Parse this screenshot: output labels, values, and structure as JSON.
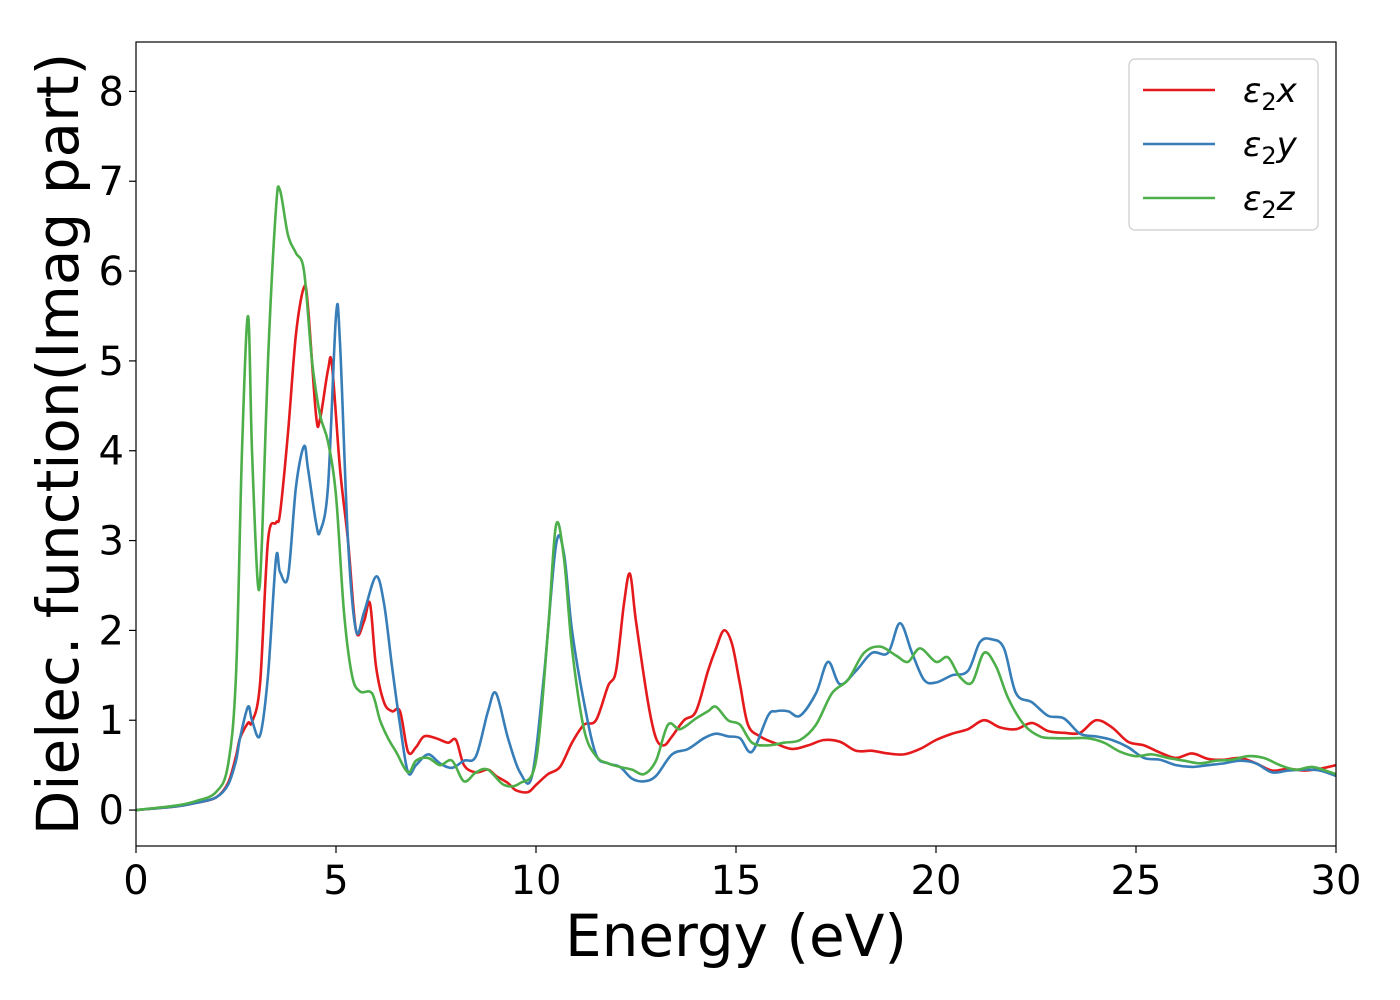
{
  "chart_data": {
    "type": "line",
    "xlabel": "Energy (eV)",
    "ylabel": "Dielec. function(Imag part)",
    "xlim": [
      0,
      30
    ],
    "ylim": [
      -0.4,
      8.55
    ],
    "xticks": [
      0,
      5,
      10,
      15,
      20,
      25,
      30
    ],
    "yticks": [
      0,
      1,
      2,
      3,
      4,
      5,
      6,
      7,
      8
    ],
    "grid": false,
    "legend_position": "top-right",
    "series": [
      {
        "name": "ε₂x",
        "legend_main": "ε",
        "legend_sub": "2",
        "legend_suffix": "x",
        "color": "#e41a1c",
        "x": [
          0,
          1,
          1.5,
          2,
          2.3,
          2.5,
          2.6,
          2.8,
          2.9,
          3.1,
          3.3,
          3.5,
          3.6,
          3.8,
          4.0,
          4.2,
          4.3,
          4.5,
          4.6,
          4.8,
          4.9,
          5.1,
          5.3,
          5.5,
          5.7,
          5.85,
          6.0,
          6.2,
          6.4,
          6.6,
          6.8,
          7.0,
          7.2,
          7.5,
          7.8,
          8.0,
          8.2,
          8.5,
          8.8,
          9.0,
          9.3,
          9.5,
          9.8,
          10.0,
          10.3,
          10.6,
          10.9,
          11.2,
          11.5,
          11.8,
          12.0,
          12.2,
          12.35,
          12.5,
          12.8,
          13.0,
          13.2,
          13.4,
          13.7,
          14.0,
          14.3,
          14.5,
          14.7,
          14.9,
          15.1,
          15.3,
          15.6,
          16.0,
          16.4,
          16.8,
          17.2,
          17.6,
          18.0,
          18.4,
          18.8,
          19.2,
          19.6,
          20.0,
          20.4,
          20.8,
          21.2,
          21.6,
          22.0,
          22.4,
          22.8,
          23.2,
          23.6,
          24.0,
          24.4,
          24.8,
          25.2,
          25.6,
          26.0,
          26.4,
          26.8,
          27.2,
          27.6,
          28.0,
          28.4,
          28.8,
          29.2,
          29.6,
          30
        ],
        "y": [
          0,
          0.04,
          0.08,
          0.14,
          0.3,
          0.6,
          0.8,
          0.97,
          0.98,
          1.4,
          3.0,
          3.2,
          3.3,
          4.2,
          5.3,
          5.82,
          5.6,
          4.4,
          4.35,
          4.9,
          4.95,
          3.8,
          3.0,
          2.0,
          2.1,
          2.3,
          1.6,
          1.2,
          1.1,
          1.1,
          0.65,
          0.7,
          0.82,
          0.8,
          0.75,
          0.78,
          0.5,
          0.42,
          0.45,
          0.38,
          0.3,
          0.22,
          0.2,
          0.28,
          0.4,
          0.48,
          0.75,
          0.95,
          1.0,
          1.38,
          1.55,
          2.3,
          2.63,
          2.1,
          1.2,
          0.8,
          0.72,
          0.82,
          1.0,
          1.1,
          1.55,
          1.8,
          2.0,
          1.85,
          1.4,
          0.95,
          0.82,
          0.74,
          0.68,
          0.72,
          0.78,
          0.76,
          0.66,
          0.66,
          0.63,
          0.62,
          0.68,
          0.78,
          0.85,
          0.9,
          1.0,
          0.92,
          0.9,
          0.97,
          0.88,
          0.86,
          0.86,
          1.0,
          0.92,
          0.76,
          0.72,
          0.64,
          0.58,
          0.63,
          0.57,
          0.56,
          0.58,
          0.52,
          0.44,
          0.46,
          0.44,
          0.46,
          0.5
        ]
      },
      {
        "name": "ε₂y",
        "legend_main": "ε",
        "legend_sub": "2",
        "legend_suffix": "y",
        "color": "#377eb8",
        "x": [
          0,
          1,
          1.5,
          2,
          2.3,
          2.5,
          2.6,
          2.8,
          2.9,
          3.1,
          3.3,
          3.5,
          3.6,
          3.8,
          4.0,
          4.2,
          4.3,
          4.5,
          4.6,
          4.8,
          5.0,
          5.1,
          5.3,
          5.5,
          5.7,
          6.0,
          6.2,
          6.4,
          6.6,
          6.8,
          7.0,
          7.3,
          7.6,
          7.9,
          8.2,
          8.5,
          8.8,
          9.0,
          9.3,
          9.6,
          9.9,
          10.2,
          10.5,
          10.7,
          10.9,
          11.2,
          11.5,
          11.8,
          12.1,
          12.4,
          12.7,
          13.0,
          13.4,
          13.8,
          14.2,
          14.5,
          14.8,
          15.1,
          15.4,
          15.8,
          16.0,
          16.3,
          16.6,
          17.0,
          17.3,
          17.6,
          18.0,
          18.4,
          18.8,
          19.1,
          19.4,
          19.7,
          20.0,
          20.4,
          20.8,
          21.1,
          21.4,
          21.7,
          22.0,
          22.4,
          22.8,
          23.2,
          23.6,
          24.0,
          24.4,
          24.8,
          25.2,
          25.6,
          26.0,
          26.4,
          26.8,
          27.2,
          27.6,
          28.0,
          28.4,
          28.8,
          29.2,
          29.6,
          30
        ],
        "y": [
          0,
          0.04,
          0.08,
          0.14,
          0.28,
          0.55,
          0.8,
          1.15,
          1.0,
          0.83,
          1.5,
          2.8,
          2.65,
          2.6,
          3.6,
          4.05,
          3.8,
          3.2,
          3.1,
          3.6,
          5.5,
          5.2,
          3.0,
          2.0,
          2.2,
          2.6,
          2.3,
          1.6,
          0.95,
          0.42,
          0.5,
          0.62,
          0.52,
          0.47,
          0.55,
          0.6,
          1.1,
          1.3,
          0.8,
          0.42,
          0.38,
          1.5,
          2.95,
          2.85,
          2.0,
          1.2,
          0.62,
          0.52,
          0.48,
          0.35,
          0.32,
          0.38,
          0.62,
          0.68,
          0.8,
          0.85,
          0.82,
          0.8,
          0.65,
          1.05,
          1.1,
          1.1,
          1.05,
          1.3,
          1.65,
          1.4,
          1.55,
          1.75,
          1.75,
          2.08,
          1.75,
          1.45,
          1.42,
          1.5,
          1.55,
          1.87,
          1.9,
          1.8,
          1.3,
          1.2,
          1.05,
          1.02,
          0.85,
          0.82,
          0.78,
          0.7,
          0.58,
          0.56,
          0.5,
          0.48,
          0.5,
          0.52,
          0.55,
          0.52,
          0.42,
          0.44,
          0.45,
          0.44,
          0.38
        ]
      },
      {
        "name": "ε₂z",
        "legend_main": "ε",
        "legend_sub": "2",
        "legend_suffix": "z",
        "color": "#4daf4a",
        "x": [
          0,
          1,
          1.5,
          2,
          2.3,
          2.5,
          2.65,
          2.8,
          2.9,
          3.05,
          3.15,
          3.3,
          3.5,
          3.6,
          3.8,
          4.0,
          4.2,
          4.4,
          4.6,
          4.8,
          5.0,
          5.2,
          5.4,
          5.6,
          5.9,
          6.1,
          6.3,
          6.5,
          6.8,
          7.0,
          7.3,
          7.6,
          7.9,
          8.2,
          8.5,
          8.8,
          9.2,
          9.6,
          10.0,
          10.3,
          10.5,
          10.7,
          10.9,
          11.2,
          11.5,
          11.8,
          12.1,
          12.4,
          12.7,
          13.0,
          13.3,
          13.6,
          14.0,
          14.3,
          14.5,
          14.8,
          15.1,
          15.4,
          15.8,
          16.2,
          16.6,
          17.0,
          17.4,
          17.8,
          18.2,
          18.6,
          19.0,
          19.3,
          19.6,
          20.0,
          20.3,
          20.6,
          20.9,
          21.2,
          21.5,
          21.8,
          22.2,
          22.6,
          23.0,
          23.4,
          23.8,
          24.2,
          24.6,
          25.0,
          25.4,
          25.8,
          26.2,
          26.6,
          27.0,
          27.4,
          27.8,
          28.2,
          28.6,
          29.0,
          29.4,
          29.8,
          30
        ],
        "y": [
          0,
          0.05,
          0.1,
          0.2,
          0.5,
          1.5,
          4.0,
          5.5,
          4.0,
          2.5,
          3.0,
          5.0,
          6.7,
          6.9,
          6.4,
          6.2,
          6.0,
          5.0,
          4.4,
          4.1,
          3.5,
          2.2,
          1.5,
          1.32,
          1.3,
          1.0,
          0.8,
          0.65,
          0.42,
          0.55,
          0.58,
          0.5,
          0.55,
          0.32,
          0.42,
          0.45,
          0.28,
          0.3,
          0.55,
          2.0,
          3.17,
          2.8,
          1.8,
          0.9,
          0.6,
          0.52,
          0.48,
          0.45,
          0.4,
          0.55,
          0.95,
          0.9,
          1.02,
          1.1,
          1.15,
          1.0,
          0.95,
          0.75,
          0.72,
          0.75,
          0.78,
          0.95,
          1.3,
          1.45,
          1.75,
          1.82,
          1.72,
          1.65,
          1.8,
          1.65,
          1.7,
          1.48,
          1.42,
          1.75,
          1.6,
          1.25,
          0.95,
          0.82,
          0.8,
          0.8,
          0.8,
          0.75,
          0.65,
          0.6,
          0.62,
          0.58,
          0.55,
          0.52,
          0.55,
          0.56,
          0.6,
          0.58,
          0.5,
          0.45,
          0.48,
          0.43,
          0.4
        ]
      }
    ]
  }
}
